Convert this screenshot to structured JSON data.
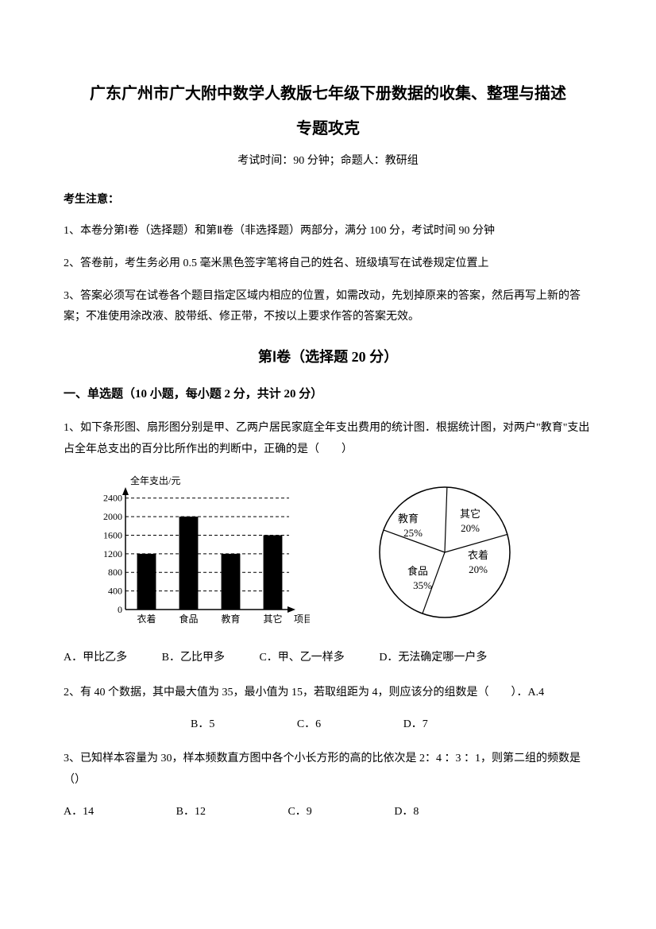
{
  "title_line1": "广东广州市广大附中数学人教版七年级下册数据的收集、整理与描述",
  "title_line2": "专题攻克",
  "subtitle": "考试时间：90 分钟；命题人：教研组",
  "notice_head": "考生注意：",
  "notice1": "1、本卷分第Ⅰ卷（选择题）和第Ⅱ卷（非选择题）两部分，满分 100 分，考试时间 90 分钟",
  "notice2": "2、答卷前，考生务必用 0.5 毫米黑色签字笔将自己的姓名、班级填写在试卷规定位置上",
  "notice3": "3、答案必须写在试卷各个题目指定区域内相应的位置，如需改动，先划掉原来的答案，然后再写上新的答案；不准使用涂改液、胶带纸、修正带，不按以上要求作答的答案无效。",
  "section1_title": "第Ⅰ卷（选择题  20 分）",
  "subsection1": "一、单选题（10 小题，每小题 2 分，共计 20 分）",
  "q1": "1、如下条形图、扇形图分别是甲、乙两户居民家庭全年支出费用的统计图．根据统计图，对两户\"教育\"支出占全年总支出的百分比所作出的判断中，正确的是（　　）",
  "q1_opts": {
    "a": "A．甲比乙多",
    "b": "B．乙比甲多",
    "c": "C．甲、乙一样多",
    "d": "D．无法确定哪一户多"
  },
  "q2": "2、有 40 个数据，其中最大值为 35，最小值为 15，若取组距为 4，则应该分的组数是（　　）．A.4",
  "q2_opts": {
    "b": "B．5",
    "c": "C．6",
    "d": "D．7"
  },
  "q3": "3、已知样本容量为 30，样本频数直方图中各个小长方形的高的比依次是 2：4 ：3 ：1，则第二组的频数是（）",
  "q3_opts": {
    "a": "A．14",
    "b": "B．12",
    "c": "C．9",
    "d": "D．8"
  },
  "bar_chart": {
    "y_label": "全年支出/元",
    "x_label": "项目",
    "categories": [
      "衣着",
      "食品",
      "教育",
      "其它"
    ],
    "values": [
      1200,
      2000,
      1200,
      1600
    ],
    "y_ticks": [
      "0",
      "400",
      "800",
      "1200",
      "1600",
      "2000",
      "2400"
    ],
    "y_max": 2600,
    "axis_color": "#000000",
    "bar_fill": "#000000",
    "grid_dash": "4,3",
    "font_size": 12
  },
  "pie_chart": {
    "slices": [
      {
        "label": "教育",
        "percent_text": "25%",
        "value": 25,
        "start": 200,
        "label_rx": -46,
        "label_ry": -38,
        "pct_rx": -40,
        "pct_ry": -20
      },
      {
        "label": "其它",
        "percent_text": "20%",
        "value": 20,
        "start": 290,
        "label_rx": 32,
        "label_ry": -44,
        "pct_rx": 32,
        "pct_ry": -26
      },
      {
        "label": "衣着",
        "percent_text": "20%",
        "value": 20,
        "start": 2,
        "label_rx": 42,
        "label_ry": 8,
        "pct_rx": 42,
        "pct_ry": 26
      },
      {
        "label": "食品",
        "percent_text": "35%",
        "value": 35,
        "start": 74,
        "label_rx": -34,
        "label_ry": 28,
        "pct_rx": -28,
        "pct_ry": 46
      }
    ],
    "radius": 82,
    "stroke": "#000000",
    "fill": "#ffffff",
    "font_size": 13
  }
}
